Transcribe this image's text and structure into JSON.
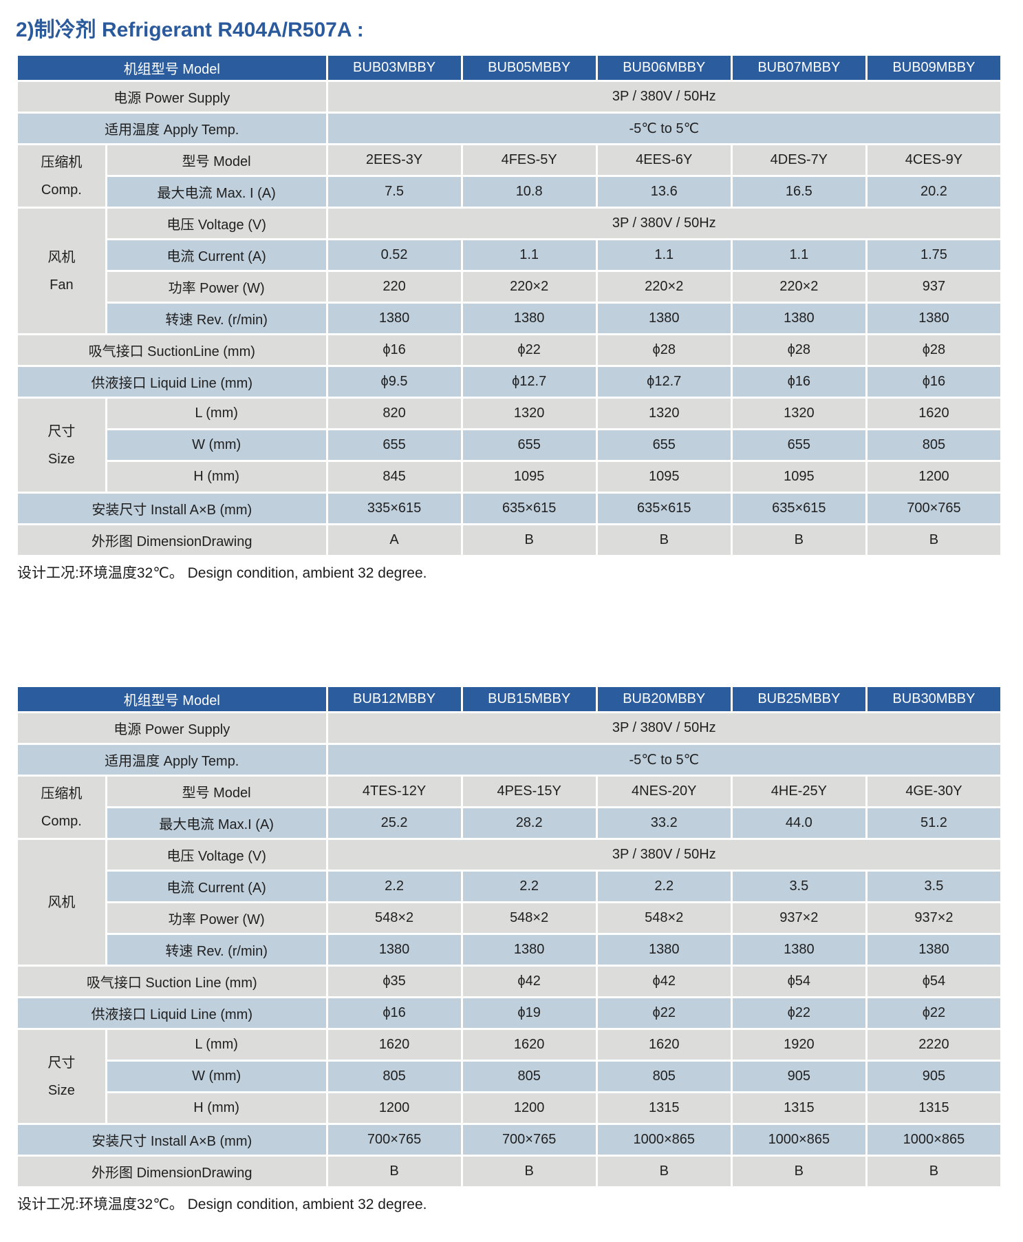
{
  "title": "2)制冷剂 Refrigerant R404A/R507A :",
  "colors": {
    "header_bg": "#2b5c9e",
    "row_gray": "#dcdcdb",
    "row_blue": "#bfcfdc",
    "title_text": "#2a5a9b",
    "cell_text": "#1f1f1f",
    "header_text": "#ffffff"
  },
  "tables": [
    {
      "header_label": "机组型号 Model",
      "models": [
        "BUB03MBBY",
        "BUB05MBBY",
        "BUB06MBBY",
        "BUB07MBBY",
        "BUB09MBBY"
      ],
      "rows": [
        {
          "label": "电源 Power Supply",
          "label_colspan": 2,
          "shade": "gray",
          "span_value": "3P / 380V / 50Hz"
        },
        {
          "label": "适用温度 Apply Temp.",
          "label_colspan": 2,
          "shade": "blue",
          "span_value": "-5℃ to 5℃"
        },
        {
          "group": {
            "cn": "压缩机",
            "en": "Comp.",
            "rowspan": 2
          },
          "label": "型号 Model",
          "label_colspan": 1,
          "shade": "gray",
          "values": [
            "2EES-3Y",
            "4FES-5Y",
            "4EES-6Y",
            "4DES-7Y",
            "4CES-9Y"
          ]
        },
        {
          "label": "最大电流 Max. I (A)",
          "label_colspan": 1,
          "shade": "blue",
          "values": [
            "7.5",
            "10.8",
            "13.6",
            "16.5",
            "20.2"
          ]
        },
        {
          "group": {
            "cn": "风机",
            "en": "Fan",
            "rowspan": 4
          },
          "label": "电压 Voltage (V)",
          "label_colspan": 1,
          "shade": "gray",
          "span_value": "3P / 380V / 50Hz"
        },
        {
          "label": "电流 Current (A)",
          "label_colspan": 1,
          "shade": "blue",
          "values": [
            "0.52",
            "1.1",
            "1.1",
            "1.1",
            "1.75"
          ]
        },
        {
          "label": "功率 Power (W)",
          "label_colspan": 1,
          "shade": "gray",
          "values": [
            "220",
            "220×2",
            "220×2",
            "220×2",
            "937"
          ]
        },
        {
          "label": "转速 Rev. (r/min)",
          "label_colspan": 1,
          "shade": "blue",
          "values": [
            "1380",
            "1380",
            "1380",
            "1380",
            "1380"
          ]
        },
        {
          "label": "吸气接口 SuctionLine (mm)",
          "label_colspan": 2,
          "shade": "gray",
          "values": [
            "ϕ16",
            "ϕ22",
            "ϕ28",
            "ϕ28",
            "ϕ28"
          ]
        },
        {
          "label": "供液接口 Liquid Line (mm)",
          "label_colspan": 2,
          "shade": "blue",
          "values": [
            "ϕ9.5",
            "ϕ12.7",
            "ϕ12.7",
            "ϕ16",
            "ϕ16"
          ]
        },
        {
          "group": {
            "cn": "尺寸",
            "en": "Size",
            "rowspan": 3
          },
          "label": "L (mm)",
          "label_colspan": 1,
          "shade": "gray",
          "values": [
            "820",
            "1320",
            "1320",
            "1320",
            "1620"
          ]
        },
        {
          "label": "W (mm)",
          "label_colspan": 1,
          "shade": "blue",
          "values": [
            "655",
            "655",
            "655",
            "655",
            "805"
          ]
        },
        {
          "label": "H (mm)",
          "label_colspan": 1,
          "shade": "gray",
          "values": [
            "845",
            "1095",
            "1095",
            "1095",
            "1200"
          ]
        },
        {
          "label": "安装尺寸 Install A×B (mm)",
          "label_colspan": 2,
          "shade": "blue",
          "values": [
            "335×615",
            "635×615",
            "635×615",
            "635×615",
            "700×765"
          ]
        },
        {
          "label": "外形图 DimensionDrawing",
          "label_colspan": 2,
          "shade": "gray",
          "values": [
            "A",
            "B",
            "B",
            "B",
            "B"
          ]
        }
      ],
      "note": "设计工况:环境温度32℃。 Design condition, ambient 32 degree."
    },
    {
      "header_label": "机组型号 Model",
      "models": [
        "BUB12MBBY",
        "BUB15MBBY",
        "BUB20MBBY",
        "BUB25MBBY",
        "BUB30MBBY"
      ],
      "rows": [
        {
          "label": "电源 Power Supply",
          "label_colspan": 2,
          "shade": "gray",
          "span_value": "3P / 380V / 50Hz"
        },
        {
          "label": "适用温度 Apply Temp.",
          "label_colspan": 2,
          "shade": "blue",
          "span_value": "-5℃ to 5℃"
        },
        {
          "group": {
            "cn": "压缩机",
            "en": "Comp.",
            "rowspan": 2
          },
          "label": "型号 Model",
          "label_colspan": 1,
          "shade": "gray",
          "values": [
            "4TES-12Y",
            "4PES-15Y",
            "4NES-20Y",
            "4HE-25Y",
            "4GE-30Y"
          ]
        },
        {
          "label": "最大电流 Max.I (A)",
          "label_colspan": 1,
          "shade": "blue",
          "values": [
            "25.2",
            "28.2",
            "33.2",
            "44.0",
            "51.2"
          ]
        },
        {
          "group": {
            "cn": "风机",
            "en": "",
            "rowspan": 4
          },
          "label": "电压 Voltage (V)",
          "label_colspan": 1,
          "shade": "gray",
          "span_value": "3P / 380V / 50Hz"
        },
        {
          "label": "电流 Current (A)",
          "label_colspan": 1,
          "shade": "blue",
          "values": [
            "2.2",
            "2.2",
            "2.2",
            "3.5",
            "3.5"
          ]
        },
        {
          "label": "功率 Power (W)",
          "label_colspan": 1,
          "shade": "gray",
          "values": [
            "548×2",
            "548×2",
            "548×2",
            "937×2",
            "937×2"
          ]
        },
        {
          "label": "转速 Rev. (r/min)",
          "label_colspan": 1,
          "shade": "blue",
          "values": [
            "1380",
            "1380",
            "1380",
            "1380",
            "1380"
          ]
        },
        {
          "label": "吸气接口 Suction Line (mm)",
          "label_colspan": 2,
          "shade": "gray",
          "values": [
            "ϕ35",
            "ϕ42",
            "ϕ42",
            "ϕ54",
            "ϕ54"
          ]
        },
        {
          "label": "供液接口 Liquid Line (mm)",
          "label_colspan": 2,
          "shade": "blue",
          "values": [
            "ϕ16",
            "ϕ19",
            "ϕ22",
            "ϕ22",
            "ϕ22"
          ]
        },
        {
          "group": {
            "cn": "尺寸",
            "en": "Size",
            "rowspan": 3
          },
          "label": "L (mm)",
          "label_colspan": 1,
          "shade": "gray",
          "values": [
            "1620",
            "1620",
            "1620",
            "1920",
            "2220"
          ]
        },
        {
          "label": "W (mm)",
          "label_colspan": 1,
          "shade": "blue",
          "values": [
            "805",
            "805",
            "805",
            "905",
            "905"
          ]
        },
        {
          "label": "H (mm)",
          "label_colspan": 1,
          "shade": "gray",
          "values": [
            "1200",
            "1200",
            "1315",
            "1315",
            "1315"
          ]
        },
        {
          "label": "安装尺寸 Install A×B (mm)",
          "label_colspan": 2,
          "shade": "blue",
          "values": [
            "700×765",
            "700×765",
            "1000×865",
            "1000×865",
            "1000×865"
          ]
        },
        {
          "label": "外形图 DimensionDrawing",
          "label_colspan": 2,
          "shade": "gray",
          "values": [
            "B",
            "B",
            "B",
            "B",
            "B"
          ]
        }
      ],
      "note": "设计工况:环境温度32℃。 Design condition, ambient 32 degree."
    }
  ]
}
